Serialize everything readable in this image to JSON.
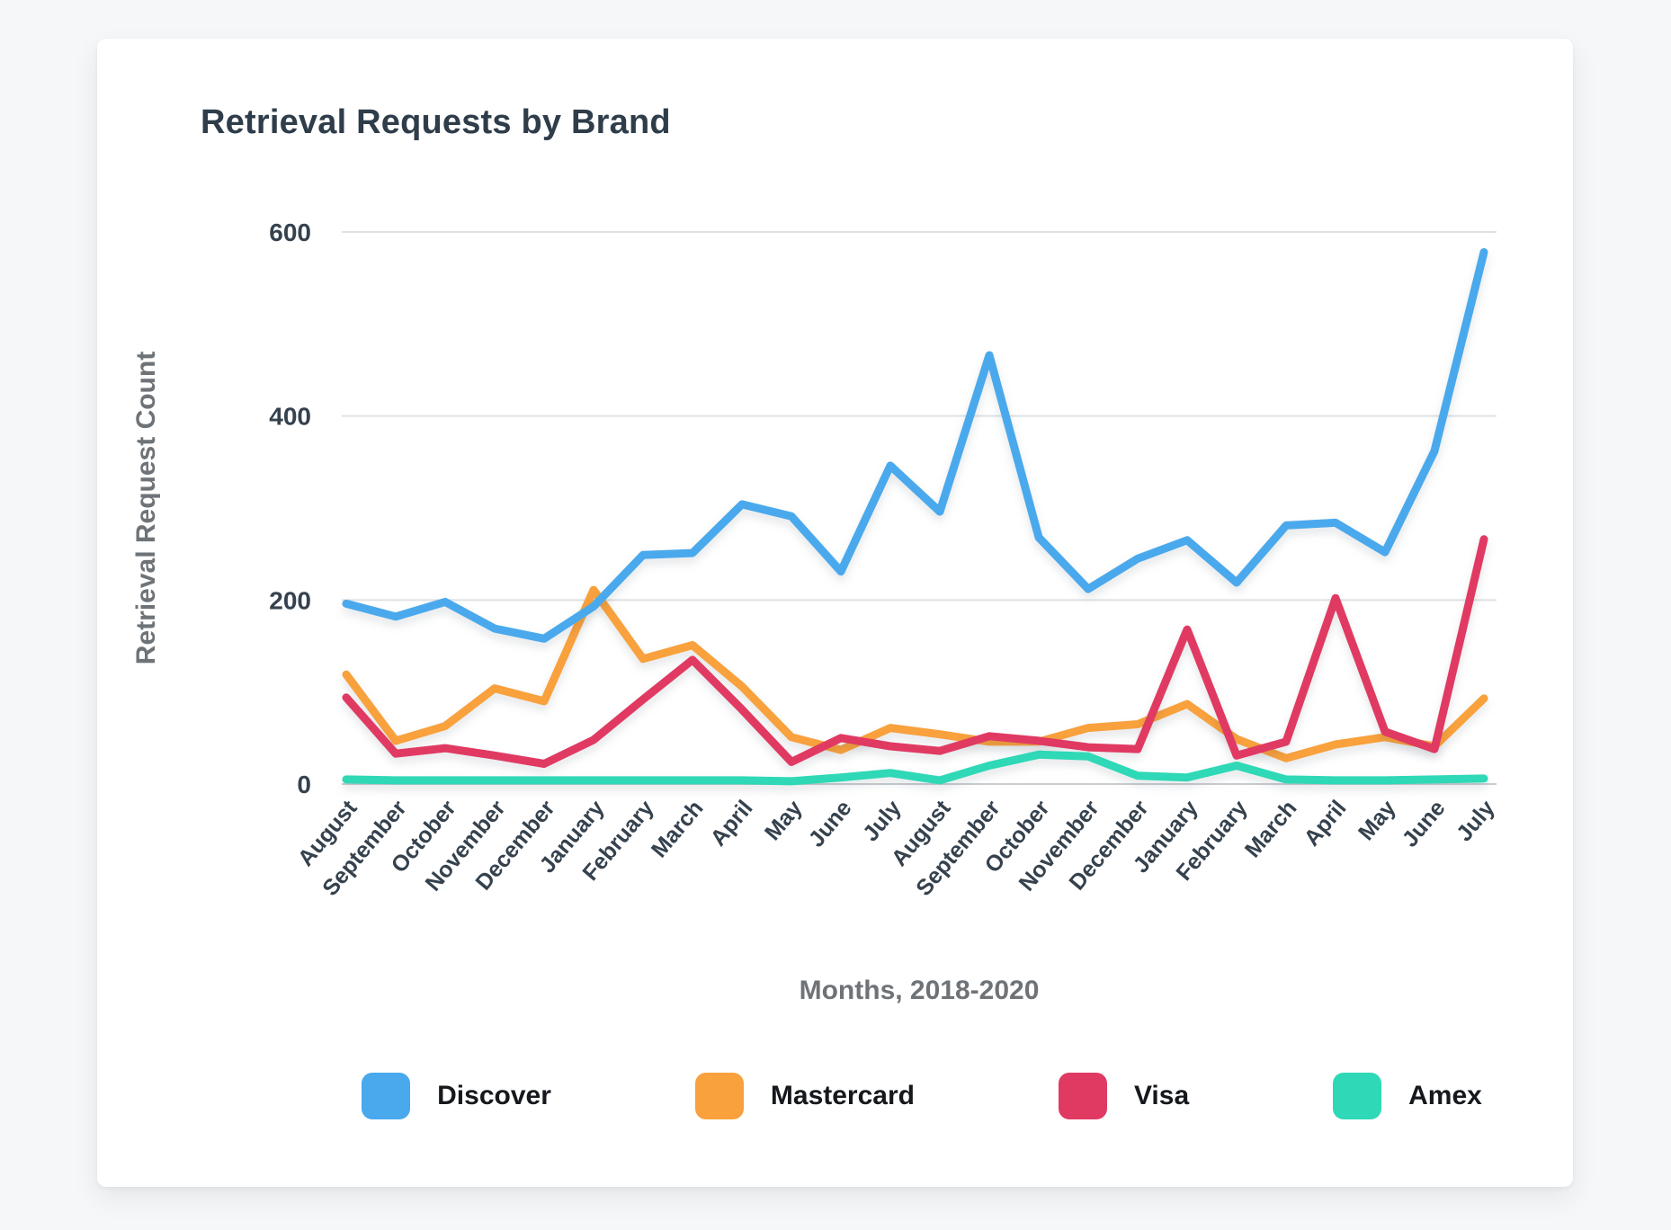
{
  "chart_data": {
    "type": "line",
    "title": "Retrieval Requests by Brand",
    "xlabel": "Months, 2018-2020",
    "ylabel": "Retrieval Request Count",
    "ylim": [
      0,
      600
    ],
    "yticks": [
      0,
      200,
      400,
      600
    ],
    "grid": true,
    "legend_position": "bottom",
    "categories": [
      "August",
      "September",
      "October",
      "November",
      "December",
      "January",
      "February",
      "March",
      "April",
      "May",
      "June",
      "July",
      "August",
      "September",
      "October",
      "November",
      "December",
      "January",
      "February",
      "March",
      "April",
      "May",
      "June",
      "July"
    ],
    "series": [
      {
        "name": "Discover",
        "color": "#4aa9ec",
        "values": [
          196,
          182,
          198,
          169,
          158,
          193,
          249,
          251,
          304,
          291,
          231,
          346,
          296,
          466,
          268,
          212,
          245,
          265,
          219,
          281,
          284,
          252,
          362,
          578
        ]
      },
      {
        "name": "Mastercard",
        "color": "#f8a13d",
        "values": [
          119,
          47,
          63,
          104,
          90,
          211,
          136,
          151,
          106,
          51,
          37,
          61,
          54,
          46,
          46,
          61,
          65,
          87,
          49,
          28,
          43,
          51,
          41,
          93
        ]
      },
      {
        "name": "Visa",
        "color": "#e03a63",
        "values": [
          94,
          33,
          39,
          31,
          22,
          48,
          92,
          135,
          81,
          24,
          50,
          41,
          36,
          52,
          47,
          40,
          38,
          168,
          31,
          46,
          202,
          57,
          38,
          266
        ]
      },
      {
        "name": "Amex",
        "color": "#2fd8b6",
        "values": [
          5,
          4,
          4,
          4,
          4,
          4,
          4,
          4,
          4,
          3,
          7,
          12,
          4,
          20,
          32,
          30,
          9,
          7,
          20,
          5,
          4,
          4,
          5,
          6
        ]
      }
    ]
  },
  "style": {
    "page_background": "#f6f7f8",
    "card_background": "#ffffff",
    "title_color": "#2f3d4a",
    "tick_label_color": "#35424e",
    "axis_title_color": "#6e7378",
    "gridline_color": "#dfe2e4"
  }
}
